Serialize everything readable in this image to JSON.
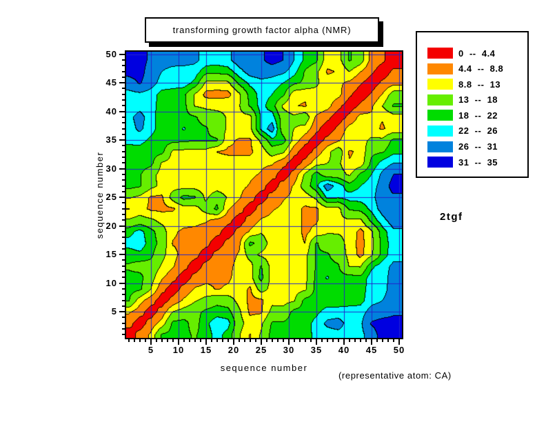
{
  "chart_data": {
    "type": "heatmap",
    "subtype": "contour-distance-matrix",
    "title": "transforming growth factor alpha (NMR)",
    "xlabel": "sequence number",
    "ylabel": "sequence number",
    "x_range": [
      0.5,
      50.5
    ],
    "y_range": [
      0.5,
      50.5
    ],
    "x_ticks": [
      5,
      10,
      15,
      20,
      25,
      30,
      35,
      40,
      45,
      50
    ],
    "y_ticks": [
      5,
      10,
      15,
      20,
      25,
      30,
      35,
      40,
      45,
      50
    ],
    "minor_tick_step": 1,
    "grid": true,
    "grid_color": "#2222cc",
    "frame_color": "#000000",
    "legend_position": "top-right",
    "legend_bins": [
      {
        "label": "0  --  4.4",
        "min": 0,
        "max": 4.4,
        "color": "#f40000"
      },
      {
        "label": "4.4  --  8.8",
        "min": 4.4,
        "max": 8.8,
        "color": "#ff8800"
      },
      {
        "label": "8.8  --  13",
        "min": 8.8,
        "max": 13,
        "color": "#ffff00"
      },
      {
        "label": "13  --  18",
        "min": 13,
        "max": 18,
        "color": "#66ee00"
      },
      {
        "label": "18  --  22",
        "min": 18,
        "max": 22,
        "color": "#00dc00"
      },
      {
        "label": "22  --  26",
        "min": 22,
        "max": 26,
        "color": "#00ffff"
      },
      {
        "label": "26  --  31",
        "min": 26,
        "max": 31,
        "color": "#0082dd"
      },
      {
        "label": "31  --  35",
        "min": 31,
        "max": 35,
        "color": "#0000e0"
      }
    ],
    "annotations": {
      "pdb_id": "2tgf",
      "footnote": "(representative atom: CA)"
    },
    "units": "angstrom",
    "matrix": {
      "description": "CA-CA distance map estimated from contour colors on a coarse grid; rows run y=49 (top) to y=1 (bottom), columns x=1..49 step 2; null means use symmetric mirror value",
      "residues": [
        1,
        3,
        5,
        7,
        9,
        11,
        13,
        15,
        17,
        19,
        21,
        23,
        25,
        27,
        29,
        31,
        33,
        35,
        37,
        39,
        41,
        43,
        45,
        47,
        49
      ],
      "rows": [
        [
          33,
          33,
          30,
          28.5,
          28.5,
          28,
          27,
          24.5,
          24,
          25,
          28.5,
          29,
          30,
          33,
          31,
          26,
          21,
          19,
          10,
          11,
          18.5,
          15.5,
          7.2,
          5.2,
          2
        ],
        [
          33,
          33,
          28.5,
          26,
          24,
          24,
          24,
          19.5,
          19.5,
          20,
          24.5,
          28,
          29,
          28,
          27,
          23.5,
          17.5,
          14,
          8.4,
          9,
          13,
          9,
          5.2,
          2,
          5.2
        ],
        [
          28.5,
          31.5,
          28,
          24.5,
          24,
          24,
          21,
          12,
          11.5,
          12,
          19,
          23,
          24.5,
          24,
          22,
          19,
          17,
          14,
          10,
          9.5,
          8,
          4.9,
          2,
          5.2,
          7.2
        ],
        [
          24.5,
          25,
          24,
          20.5,
          20,
          19,
          12.5,
          7.5,
          7.2,
          7.5,
          12,
          19.5,
          23.5,
          22,
          19,
          10,
          9.5,
          11,
          11.2,
          10.2,
          5.2,
          2,
          4.9,
          9,
          15.5
        ],
        [
          24,
          24,
          23.5,
          20.5,
          20,
          19.5,
          12.8,
          11.8,
          11.5,
          12,
          12.5,
          18.5,
          23.5,
          20,
          12.2,
          9,
          8.4,
          12,
          10.5,
          5.5,
          2,
          5.2,
          8,
          13,
          18.5
        ],
        [
          24.5,
          28,
          23.5,
          20,
          19.5,
          19,
          18.5,
          16,
          15,
          12.5,
          12,
          11.5,
          22.5,
          24,
          15.5,
          14,
          16,
          8,
          5.4,
          2,
          5.5,
          10.2,
          9.5,
          9,
          11
        ],
        [
          24,
          27,
          23.5,
          20,
          19.5,
          22.5,
          19,
          18.5,
          15.5,
          12.5,
          12,
          11.5,
          23,
          28.5,
          15,
          13,
          11.5,
          5.6,
          2,
          5.4,
          10.5,
          11.2,
          10,
          8.4,
          10
        ],
        [
          23,
          23.5,
          21,
          20,
          19.5,
          19,
          18.5,
          18.5,
          18.5,
          10,
          8.2,
          8.2,
          14,
          21,
          20,
          11.5,
          5.8,
          2,
          5.6,
          8,
          12,
          11,
          14,
          14,
          19
        ],
        [
          20.5,
          20,
          19.5,
          19.5,
          12,
          11.8,
          11.5,
          11.5,
          8.7,
          8,
          8,
          8.2,
          10.5,
          15.5,
          14,
          5.8,
          2,
          5.8,
          11.5,
          16,
          8.4,
          9.5,
          17,
          17.5,
          21
        ],
        [
          20.5,
          20,
          19.5,
          12.5,
          11.5,
          11.5,
          11,
          11,
          10.5,
          10.5,
          10.5,
          10,
          9.5,
          9.4,
          5.8,
          2,
          5.8,
          11.5,
          13,
          14,
          9,
          10,
          19,
          23.5,
          26
        ],
        [
          19.5,
          18.5,
          14.5,
          11.5,
          11.3,
          11,
          10.8,
          10.5,
          10.3,
          10,
          9.8,
          9.5,
          8.5,
          6.2,
          2,
          5.8,
          14,
          20,
          15,
          15.5,
          12.2,
          19,
          22,
          27,
          31
        ],
        [
          19.5,
          18.5,
          14.5,
          11.8,
          11.5,
          11,
          11,
          10.5,
          10.3,
          10,
          9.8,
          8.5,
          6.2,
          2,
          6.2,
          9.4,
          15.5,
          21,
          28.5,
          24,
          20,
          22,
          24,
          28,
          33
        ],
        [
          13.5,
          12,
          8.2,
          8,
          15,
          19.5,
          18.5,
          12,
          16.5,
          12.5,
          9.3,
          6.2,
          2,
          null,
          null,
          null,
          null,
          null,
          null,
          null,
          null,
          null,
          null,
          null,
          null
        ],
        [
          8.6,
          10.5,
          8,
          7.8,
          8.2,
          11,
          11.2,
          15,
          19,
          9.3,
          6.2,
          2,
          null,
          null,
          null,
          null,
          null,
          null,
          null,
          null,
          null,
          null,
          null,
          null,
          null
        ],
        [
          13.5,
          15,
          14,
          11.5,
          11,
          10.5,
          10,
          9.3,
          7.5,
          5.8,
          2,
          null,
          null,
          null,
          null,
          null,
          null,
          null,
          null,
          null,
          null,
          null,
          null,
          null,
          null
        ],
        [
          20.5,
          23.5,
          19.5,
          15.5,
          9.5,
          8,
          7.8,
          6.8,
          5.8,
          2,
          null,
          null,
          null,
          null,
          null,
          null,
          null,
          null,
          null,
          null,
          null,
          null,
          null,
          null,
          null
        ],
        [
          23.5,
          24.5,
          20,
          16.5,
          8.5,
          8,
          7,
          5.8,
          2,
          null,
          null,
          null,
          null,
          null,
          null,
          null,
          null,
          null,
          null,
          null,
          null,
          null,
          null,
          null,
          null
        ],
        [
          20,
          21,
          19,
          14.5,
          10,
          7.5,
          5.8,
          2,
          null,
          null,
          null,
          null,
          null,
          null,
          null,
          null,
          null,
          null,
          null,
          null,
          null,
          null,
          null,
          null,
          null
        ],
        [
          17.5,
          16,
          16.5,
          12.5,
          9.3,
          5.8,
          2,
          null,
          null,
          null,
          null,
          null,
          null,
          null,
          null,
          null,
          null,
          null,
          null,
          null,
          null,
          null,
          null,
          null,
          null
        ],
        [
          19,
          19.5,
          15,
          9.5,
          5.8,
          2,
          null,
          null,
          null,
          null,
          null,
          null,
          null,
          null,
          null,
          null,
          null,
          null,
          null,
          null,
          null,
          null,
          null,
          null,
          null
        ],
        [
          19.5,
          19,
          13.2,
          5.8,
          2,
          null,
          null,
          null,
          null,
          null,
          null,
          null,
          null,
          null,
          null,
          null,
          null,
          null,
          null,
          null,
          null,
          null,
          null,
          null,
          null
        ],
        [
          18.5,
          10.5,
          6.2,
          2,
          null,
          null,
          null,
          null,
          null,
          null,
          null,
          null,
          null,
          null,
          null,
          null,
          null,
          null,
          null,
          null,
          null,
          null,
          null,
          null,
          null
        ],
        [
          9.5,
          6.2,
          2,
          null,
          null,
          null,
          null,
          null,
          null,
          null,
          null,
          null,
          null,
          null,
          null,
          null,
          null,
          null,
          null,
          null,
          null,
          null,
          null,
          null,
          null
        ],
        [
          6,
          2,
          null,
          null,
          null,
          null,
          null,
          null,
          null,
          null,
          null,
          null,
          null,
          null,
          null,
          null,
          null,
          null,
          null,
          null,
          null,
          null,
          null,
          null,
          null
        ],
        [
          2,
          null,
          null,
          null,
          null,
          null,
          null,
          null,
          null,
          null,
          null,
          null,
          null,
          null,
          null,
          null,
          null,
          null,
          null,
          null,
          null,
          null,
          null,
          null,
          null
        ]
      ]
    }
  }
}
